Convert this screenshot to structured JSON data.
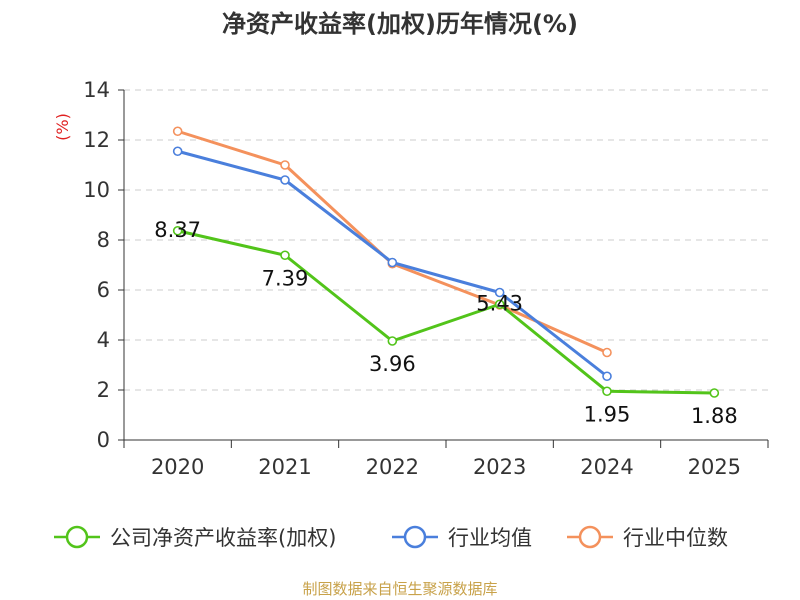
{
  "chart_data": {
    "type": "line",
    "title": "净资产收益率(加权)历年情况(%)",
    "ylabel": "(%)",
    "xlabel": "",
    "categories": [
      "2020",
      "2021",
      "2022",
      "2023",
      "2024",
      "2025"
    ],
    "ylim": [
      0,
      14
    ],
    "yticks": [
      0,
      2,
      4,
      6,
      8,
      10,
      12,
      14
    ],
    "grid": true,
    "legend_position": "bottom",
    "series": [
      {
        "name": "公司净资产收益率(加权)",
        "color": "#52c41a",
        "values": [
          8.37,
          7.39,
          3.96,
          5.43,
          1.95,
          1.88
        ],
        "labels": [
          "8.37",
          "7.39",
          "3.96",
          "5.43",
          "1.95",
          "1.88"
        ]
      },
      {
        "name": "行业均值",
        "color": "#4a7fdc",
        "values": [
          11.55,
          10.4,
          7.1,
          5.9,
          2.55,
          null
        ]
      },
      {
        "name": "行业中位数",
        "color": "#f4915c",
        "values": [
          12.35,
          11.0,
          7.05,
          5.4,
          3.5,
          null
        ]
      }
    ]
  },
  "footer": {
    "source": "制图数据来自恒生聚源数据库"
  }
}
